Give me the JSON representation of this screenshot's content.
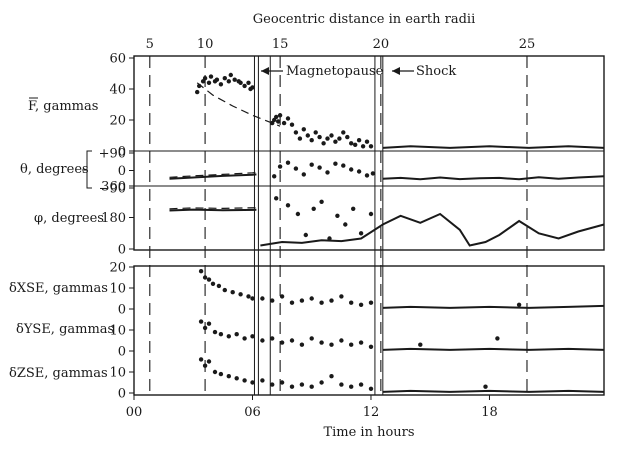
{
  "chart_data": {
    "type": "scatter",
    "top_axis": {
      "label": "Geocentric distance in earth radii",
      "ticks": [
        "5",
        "10",
        "15",
        "20",
        "25"
      ],
      "tick_hours": [
        0.8,
        3.6,
        7.4,
        12.5,
        19.9
      ]
    },
    "bottom_axis": {
      "label": "Time in hours",
      "ticks": [
        "00",
        "06",
        "12",
        "18"
      ],
      "tick_hours": [
        0,
        6,
        12,
        18
      ],
      "range": [
        0,
        23.8
      ]
    },
    "annotations": {
      "magnetopause": {
        "label": "Magnetopause",
        "hour": 6.9
      },
      "shock": {
        "label": "Shock",
        "hour": 12.6
      }
    },
    "event_lines_hours": [
      6.1,
      6.3,
      6.9,
      12.2,
      12.6
    ],
    "panels": [
      {
        "id": "F",
        "ylabel": "F, gammas",
        "ytick_labels": [
          "60",
          "40",
          "20",
          "0"
        ],
        "ytick_values": [
          60,
          40,
          20,
          0
        ],
        "ylim": [
          0,
          60
        ],
        "points": [
          [
            3.2,
            38
          ],
          [
            3.3,
            42
          ],
          [
            3.5,
            45
          ],
          [
            3.6,
            47
          ],
          [
            3.8,
            44
          ],
          [
            3.9,
            48
          ],
          [
            4.1,
            45
          ],
          [
            4.2,
            46
          ],
          [
            4.4,
            43
          ],
          [
            4.6,
            47
          ],
          [
            4.8,
            45
          ],
          [
            4.9,
            49
          ],
          [
            5.1,
            46
          ],
          [
            5.3,
            45
          ],
          [
            5.4,
            44
          ],
          [
            5.6,
            42
          ],
          [
            5.8,
            44
          ],
          [
            5.9,
            40
          ],
          [
            6.0,
            41
          ],
          [
            7.0,
            18
          ],
          [
            7.1,
            20
          ],
          [
            7.2,
            22
          ],
          [
            7.3,
            19
          ],
          [
            7.4,
            23
          ],
          [
            7.6,
            18
          ],
          [
            7.8,
            21
          ],
          [
            8.0,
            17
          ],
          [
            8.2,
            12
          ],
          [
            8.4,
            8
          ],
          [
            8.6,
            14
          ],
          [
            8.8,
            10
          ],
          [
            9.0,
            7
          ],
          [
            9.2,
            12
          ],
          [
            9.4,
            9
          ],
          [
            9.6,
            5
          ],
          [
            9.8,
            8
          ],
          [
            10.0,
            10
          ],
          [
            10.2,
            6
          ],
          [
            10.4,
            8
          ],
          [
            10.6,
            12
          ],
          [
            10.8,
            9
          ],
          [
            11.0,
            5
          ],
          [
            11.2,
            4
          ],
          [
            11.4,
            7
          ],
          [
            11.6,
            3
          ],
          [
            11.8,
            6
          ],
          [
            12.0,
            3
          ]
        ],
        "lines": [
          {
            "style": "dashed",
            "points": [
              [
                3.2,
                44
              ],
              [
                4.0,
                36
              ],
              [
                5.0,
                29
              ],
              [
                6.0,
                23
              ],
              [
                7.0,
                18
              ],
              [
                7.4,
                16
              ]
            ]
          },
          {
            "style": "solid",
            "points": [
              [
                12.6,
                2
              ],
              [
                14,
                3
              ],
              [
                16,
                2
              ],
              [
                18,
                3
              ],
              [
                20,
                2
              ],
              [
                22,
                3
              ],
              [
                23.8,
                2
              ]
            ]
          }
        ]
      },
      {
        "id": "theta",
        "ylabel": "θ, degrees",
        "ytick_labels": [
          "+90",
          "0",
          "−90"
        ],
        "ytick_values": [
          90,
          0,
          -90
        ],
        "ylim": [
          -90,
          90
        ],
        "points": [
          [
            7.1,
            -30
          ],
          [
            7.4,
            20
          ],
          [
            7.8,
            40
          ],
          [
            8.2,
            10
          ],
          [
            8.6,
            -20
          ],
          [
            9.0,
            30
          ],
          [
            9.4,
            15
          ],
          [
            9.8,
            -10
          ],
          [
            10.2,
            35
          ],
          [
            10.6,
            25
          ],
          [
            11.0,
            5
          ],
          [
            11.4,
            -5
          ],
          [
            11.8,
            -25
          ],
          [
            12.1,
            -15
          ]
        ],
        "lines": [
          {
            "style": "dashed",
            "points": [
              [
                1.8,
                -35
              ],
              [
                3,
                -28
              ],
              [
                4.5,
                -20
              ],
              [
                6,
                -12
              ],
              [
                6.2,
                -10
              ]
            ]
          },
          {
            "style": "solid",
            "points": [
              [
                1.8,
                -42
              ],
              [
                3,
                -36
              ],
              [
                4.5,
                -28
              ],
              [
                6,
                -22
              ],
              [
                6.2,
                -20
              ]
            ]
          },
          {
            "style": "solid",
            "points": [
              [
                12.6,
                -42
              ],
              [
                13.5,
                -38
              ],
              [
                14.5,
                -45
              ],
              [
                15.5,
                -36
              ],
              [
                16.5,
                -44
              ],
              [
                17.5,
                -40
              ],
              [
                18.5,
                -38
              ],
              [
                19.5,
                -45
              ],
              [
                20.5,
                -35
              ],
              [
                21.5,
                -42
              ],
              [
                22.5,
                -36
              ],
              [
                23.8,
                -30
              ]
            ]
          }
        ]
      },
      {
        "id": "phi",
        "ylabel": "φ, degrees",
        "ytick_labels": [
          "360",
          "180",
          "0"
        ],
        "ytick_values": [
          360,
          180,
          0
        ],
        "ylim": [
          0,
          360
        ],
        "points": [
          [
            7.2,
            290
          ],
          [
            7.8,
            250
          ],
          [
            8.3,
            200
          ],
          [
            8.7,
            80
          ],
          [
            9.1,
            230
          ],
          [
            9.5,
            270
          ],
          [
            9.9,
            60
          ],
          [
            10.3,
            190
          ],
          [
            10.7,
            140
          ],
          [
            11.1,
            230
          ],
          [
            11.5,
            90
          ],
          [
            12.0,
            200
          ]
        ],
        "lines": [
          {
            "style": "dashed",
            "points": [
              [
                1.8,
                230
              ],
              [
                3,
                235
              ],
              [
                4.5,
                232
              ],
              [
                6.2,
                236
              ]
            ]
          },
          {
            "style": "solid",
            "points": [
              [
                1.8,
                220
              ],
              [
                3,
                225
              ],
              [
                4.5,
                222
              ],
              [
                6.2,
                224
              ]
            ]
          },
          {
            "style": "solid",
            "points": [
              [
                6.4,
                20
              ],
              [
                7.5,
                40
              ],
              [
                8.5,
                35
              ],
              [
                9.5,
                50
              ],
              [
                10.5,
                45
              ],
              [
                11.5,
                60
              ],
              [
                12.6,
                140
              ],
              [
                13.5,
                190
              ],
              [
                14.5,
                150
              ],
              [
                15.5,
                200
              ],
              [
                16.5,
                110
              ],
              [
                17,
                20
              ],
              [
                17.8,
                40
              ],
              [
                18.5,
                80
              ],
              [
                19.5,
                160
              ],
              [
                20.5,
                90
              ],
              [
                21.5,
                60
              ],
              [
                22.5,
                100
              ],
              [
                23.8,
                140
              ]
            ]
          }
        ]
      },
      {
        "id": "dX",
        "ylabel": "δXSE, gammas",
        "ytick_labels": [
          "20",
          "10",
          "0"
        ],
        "ytick_values": [
          20,
          10,
          0
        ],
        "ylim": [
          0,
          20
        ],
        "points": [
          [
            3.4,
            18
          ],
          [
            3.6,
            15
          ],
          [
            3.8,
            14
          ],
          [
            4.0,
            12
          ],
          [
            4.3,
            11
          ],
          [
            4.6,
            9
          ],
          [
            5.0,
            8
          ],
          [
            5.4,
            7
          ],
          [
            5.8,
            6
          ],
          [
            6.0,
            5
          ],
          [
            6.5,
            5
          ],
          [
            7.0,
            4
          ],
          [
            7.5,
            6
          ],
          [
            8.0,
            3
          ],
          [
            8.5,
            4
          ],
          [
            9.0,
            5
          ],
          [
            9.5,
            3
          ],
          [
            10.0,
            4
          ],
          [
            10.5,
            6
          ],
          [
            11.0,
            3
          ],
          [
            11.5,
            2
          ],
          [
            12.0,
            3
          ],
          [
            19.5,
            2
          ]
        ],
        "lines": [
          {
            "style": "solid",
            "points": [
              [
                12.6,
                0.5
              ],
              [
                14,
                1
              ],
              [
                16,
                0.5
              ],
              [
                18,
                1
              ],
              [
                20,
                0.5
              ],
              [
                22,
                1
              ],
              [
                23.8,
                1.5
              ]
            ]
          }
        ]
      },
      {
        "id": "dY",
        "ylabel": "δYSE, gammas",
        "ytick_labels": [
          "10",
          "0"
        ],
        "ytick_values": [
          10,
          0
        ],
        "ylim": [
          0,
          20
        ],
        "points": [
          [
            3.4,
            14
          ],
          [
            3.6,
            11
          ],
          [
            3.8,
            13
          ],
          [
            4.1,
            9
          ],
          [
            4.4,
            8
          ],
          [
            4.8,
            7
          ],
          [
            5.2,
            8
          ],
          [
            5.6,
            6
          ],
          [
            6.0,
            7
          ],
          [
            6.5,
            5
          ],
          [
            7.0,
            6
          ],
          [
            7.5,
            4
          ],
          [
            8.0,
            5
          ],
          [
            8.5,
            3
          ],
          [
            9.0,
            6
          ],
          [
            9.5,
            4
          ],
          [
            10.0,
            3
          ],
          [
            10.5,
            5
          ],
          [
            11.0,
            3
          ],
          [
            11.5,
            4
          ],
          [
            12.0,
            2
          ],
          [
            14.5,
            3
          ],
          [
            18.4,
            6
          ]
        ],
        "lines": [
          {
            "style": "solid",
            "points": [
              [
                12.6,
                0.5
              ],
              [
                14,
                1
              ],
              [
                16,
                0.5
              ],
              [
                18,
                1
              ],
              [
                20,
                0.5
              ],
              [
                22,
                1
              ],
              [
                23.8,
                0.5
              ]
            ]
          }
        ]
      },
      {
        "id": "dZ",
        "ylabel": "δZSE, gammas",
        "ytick_labels": [
          "10",
          "0"
        ],
        "ytick_values": [
          10,
          0
        ],
        "ylim": [
          0,
          20
        ],
        "points": [
          [
            3.4,
            16
          ],
          [
            3.6,
            13
          ],
          [
            3.8,
            15
          ],
          [
            4.1,
            10
          ],
          [
            4.4,
            9
          ],
          [
            4.8,
            8
          ],
          [
            5.2,
            7
          ],
          [
            5.6,
            6
          ],
          [
            6.0,
            5
          ],
          [
            6.5,
            6
          ],
          [
            7.0,
            4
          ],
          [
            7.5,
            5
          ],
          [
            8.0,
            3
          ],
          [
            8.5,
            4
          ],
          [
            9.0,
            3
          ],
          [
            9.5,
            5
          ],
          [
            10.0,
            8
          ],
          [
            10.5,
            4
          ],
          [
            11.0,
            3
          ],
          [
            11.5,
            4
          ],
          [
            12.0,
            2
          ],
          [
            17.8,
            3
          ]
        ],
        "lines": [
          {
            "style": "solid",
            "points": [
              [
                12.6,
                0.5
              ],
              [
                14,
                1
              ],
              [
                16,
                0.5
              ],
              [
                18,
                1
              ],
              [
                20,
                0.5
              ],
              [
                22,
                1
              ],
              [
                23.8,
                0.5
              ]
            ]
          }
        ]
      }
    ]
  }
}
